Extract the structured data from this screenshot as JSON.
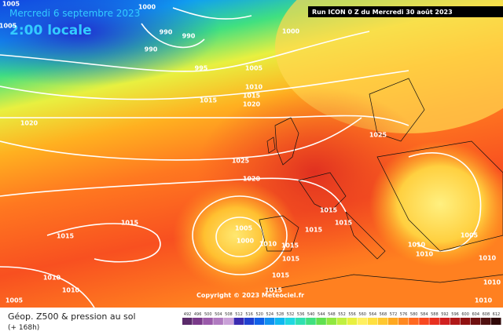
{
  "header": {
    "date": "Mercredi 6 septembre 2023",
    "time": "2:00 locale",
    "run": "Run ICON 0 Z du Mercredi 30 août 2023"
  },
  "isobar_labels": [
    1005,
    1000,
    1005,
    990,
    990,
    990,
    1000,
    995,
    1005,
    1010,
    1015,
    1015,
    1020,
    1020,
    1025,
    1025,
    1020,
    1015,
    1015,
    1015,
    1015,
    1015,
    1005,
    1000,
    1010,
    1015,
    1015,
    1010,
    1010,
    1005,
    1010,
    1010,
    1005,
    1015,
    1015,
    1010,
    1010,
    1010
  ],
  "copyright": "Copyright © 2023 Meteociel.fr",
  "footer": {
    "title": "Géop. Z500 & pression au sol",
    "lead": "(+ 168h)"
  },
  "colorbar": {
    "labels": [
      492,
      496,
      500,
      504,
      508,
      512,
      516,
      520,
      524,
      528,
      532,
      536,
      540,
      544,
      548,
      552,
      556,
      560,
      564,
      568,
      572,
      576,
      580,
      584,
      588,
      592,
      596,
      600,
      604,
      608,
      612
    ],
    "colors": [
      "#5a2a6a",
      "#7a3a8a",
      "#9a5aaa",
      "#b07ac0",
      "#c9a0d8",
      "#3a2ab0",
      "#2040d0",
      "#1060e8",
      "#1090f0",
      "#10b8f0",
      "#20d8e0",
      "#30e0b0",
      "#40e080",
      "#60e050",
      "#90e840",
      "#c0f040",
      "#e8f040",
      "#fff060",
      "#ffe040",
      "#ffc830",
      "#ffa820",
      "#ff8820",
      "#ff6820",
      "#f84820",
      "#e83020",
      "#d02020",
      "#b01818",
      "#901010",
      "#701010",
      "#501010",
      "#300808"
    ]
  }
}
